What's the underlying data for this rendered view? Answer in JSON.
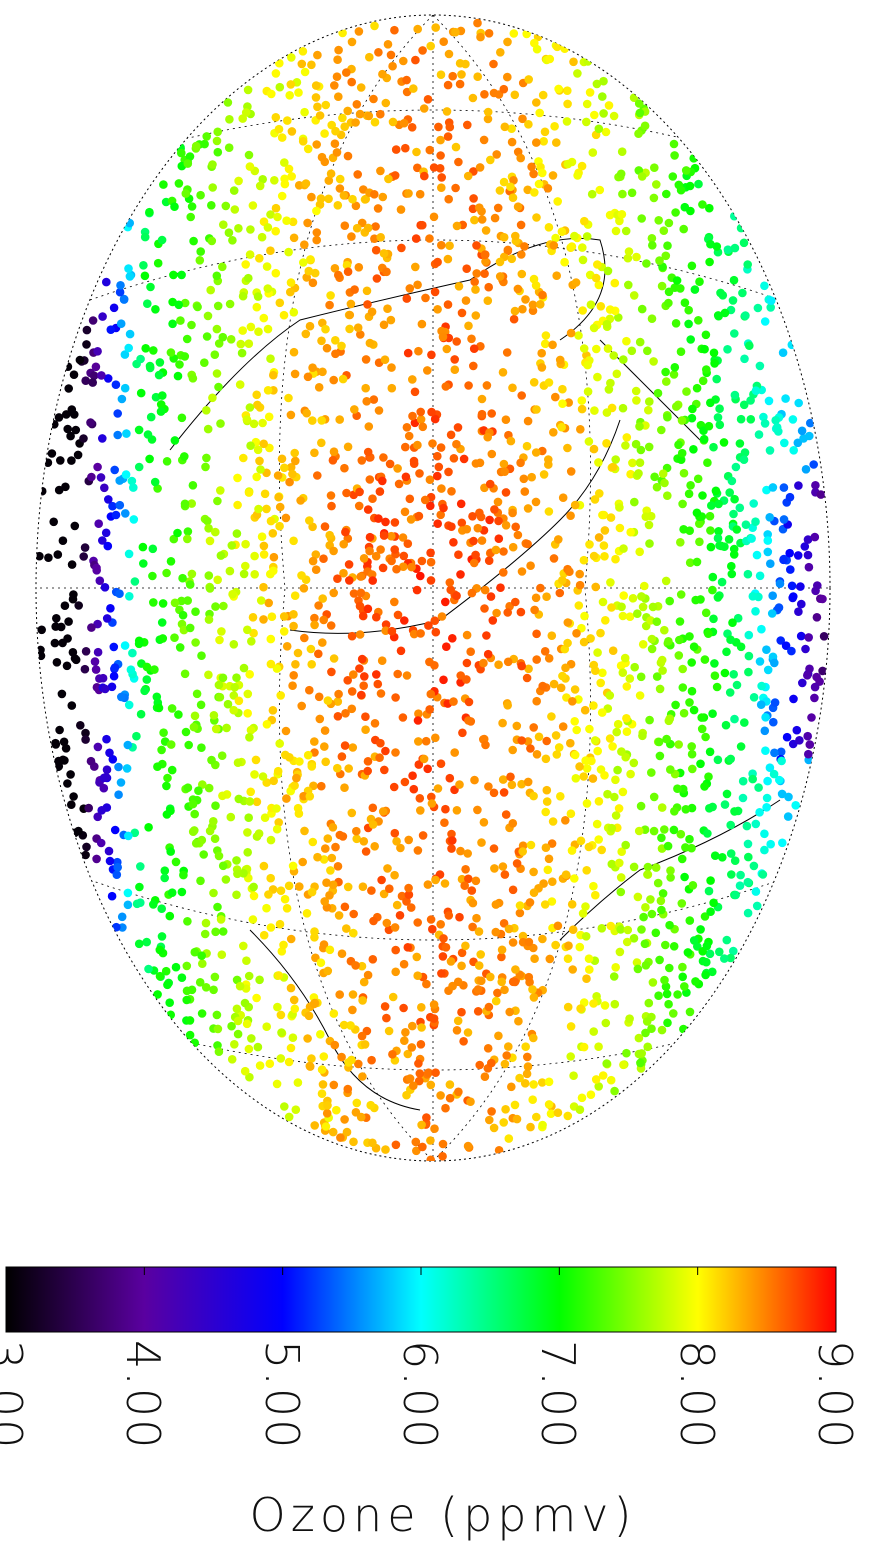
{
  "map": {
    "projection": "orthographic",
    "variable": "Ozone",
    "units": "ppmv",
    "graticule": "dotted",
    "coastlines": true
  },
  "colorbar": {
    "label": "Ozone (ppmv)",
    "min": 3.0,
    "max": 9.0,
    "ticks": [
      "3.00",
      "4.00",
      "5.00",
      "6.00",
      "7.00",
      "8.00",
      "9.00"
    ],
    "colormap": [
      "#000000",
      "#5a00a0",
      "#0000ff",
      "#00ffff",
      "#00ff00",
      "#ffff00",
      "#ff0000"
    ]
  }
}
